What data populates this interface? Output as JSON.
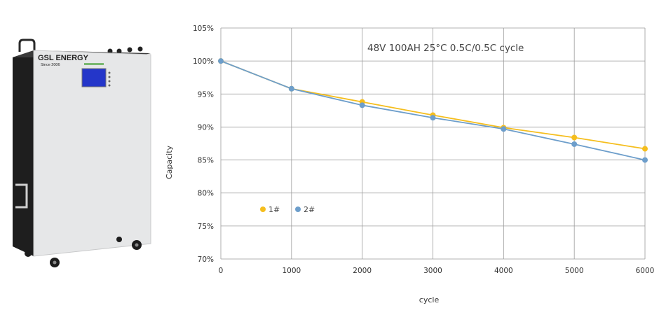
{
  "product": {
    "brand": "GSL ENERGY",
    "since": "Since 2006"
  },
  "chart_data": {
    "type": "line",
    "title": "48V 100AH 25°C 0.5C/0.5C cycle",
    "xlabel": "cycle",
    "ylabel": "Capacity",
    "x": [
      0,
      1000,
      2000,
      3000,
      4000,
      5000,
      6000
    ],
    "xlim": [
      0,
      6000
    ],
    "ylim": [
      70,
      105
    ],
    "x_ticks": [
      "0",
      "1000",
      "2000",
      "3000",
      "4000",
      "5000",
      "6000"
    ],
    "y_ticks": [
      "70%",
      "75%",
      "80%",
      "85%",
      "90%",
      "95%",
      "100%",
      "105%"
    ],
    "grid": true,
    "legend_position": "lower-left",
    "series": [
      {
        "name": "1#",
        "color": "#f5be1e",
        "values": [
          100,
          95.8,
          93.8,
          91.8,
          89.9,
          88.4,
          86.7
        ]
      },
      {
        "name": "2#",
        "color": "#6d9ecb",
        "values": [
          100,
          95.8,
          93.3,
          91.4,
          89.7,
          87.4,
          85.0
        ]
      }
    ]
  }
}
